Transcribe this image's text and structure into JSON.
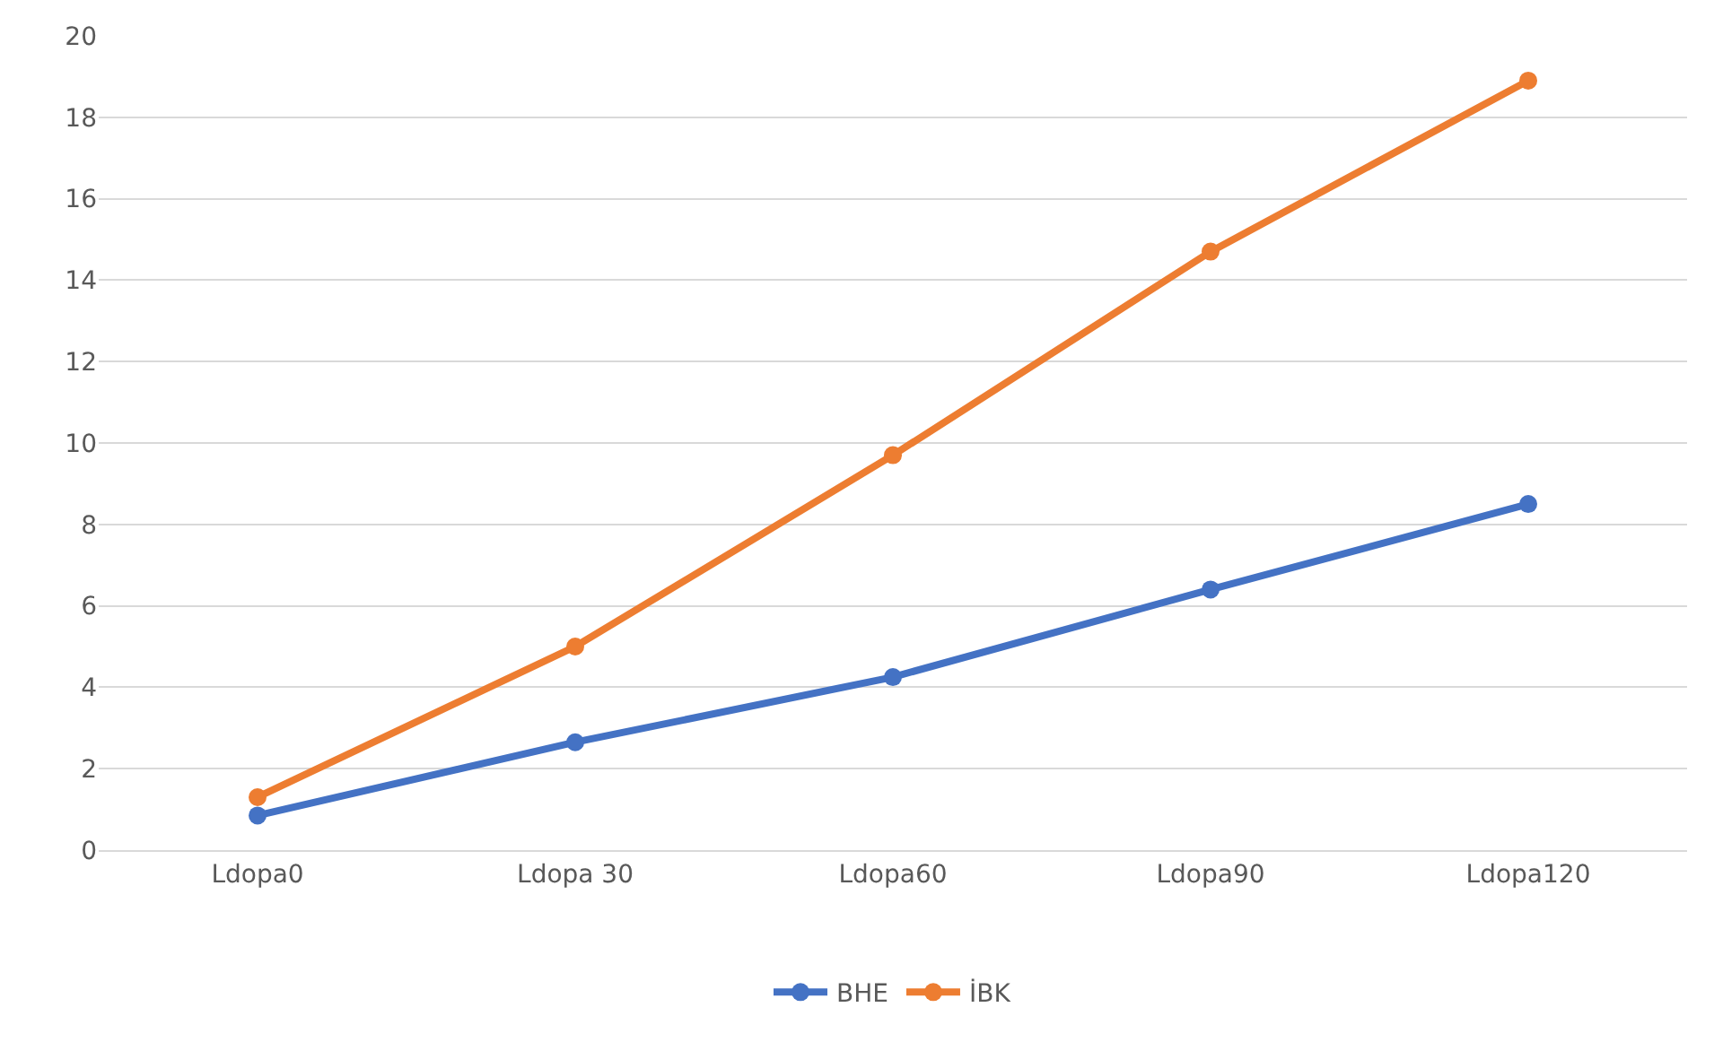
{
  "chart_data": {
    "type": "line",
    "categories": [
      "Ldopa0",
      "Ldopa 30",
      "Ldopa60",
      "Ldopa90",
      "Ldopa120"
    ],
    "series": [
      {
        "name": "BHE",
        "color": "#4472c4",
        "values": [
          0.85,
          2.65,
          4.25,
          6.4,
          8.5
        ]
      },
      {
        "name": "İBK",
        "color": "#ed7d31",
        "values": [
          1.3,
          5.0,
          9.7,
          14.7,
          18.9
        ]
      }
    ],
    "ylim": [
      0,
      20
    ],
    "yticks": [
      0,
      2,
      4,
      6,
      8,
      10,
      12,
      14,
      16,
      18,
      20
    ],
    "grid": "y",
    "legend": "bottom",
    "marker": "circle",
    "line_style": "solid"
  }
}
